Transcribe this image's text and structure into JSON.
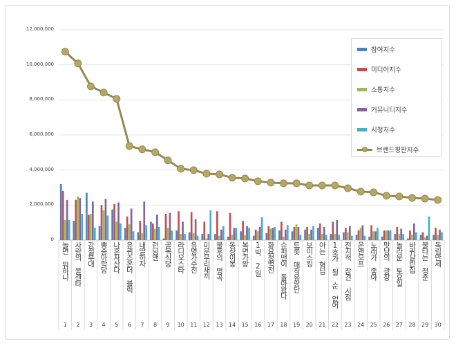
{
  "chart_data": {
    "type": "bar",
    "title": "",
    "xlabel": "",
    "ylabel": "",
    "ylim": [
      0,
      12000000
    ],
    "yticks": [
      "0",
      "2,000,000",
      "4,000,000",
      "6,000,000",
      "8,000,000",
      "10,000,000",
      "12,000,000"
    ],
    "grid": true,
    "legend_position": "top-right",
    "categories": [
      "1",
      "2",
      "3",
      "4",
      "5",
      "6",
      "7",
      "8",
      "9",
      "10",
      "11",
      "12",
      "13",
      "14",
      "15",
      "16",
      "17",
      "18",
      "19",
      "20",
      "21",
      "22",
      "23",
      "24",
      "25",
      "26",
      "27",
      "28",
      "29",
      "30"
    ],
    "category_names": [
      "놀면 뭐하니",
      "사랑의 콜센타",
      "강철부대",
      "뽕숭아학당",
      "나혼자산다",
      "유퀴즈온더 블럭",
      "내딸하자",
      "런닝맨",
      "골목식당",
      "라디오스타",
      "유명가수전",
      "미운우리새끼",
      "불후의 명곡",
      "동상이몽",
      "복면가왕",
      "1박 2일",
      "화요청백전",
      "슈퍼맨이 돌아왔다",
      "트롯 매직유랑단",
      "보이스킹",
      "아는 형님",
      "1호가 될 순 없어",
      "전지적 참견 시점",
      "온앤오프",
      "노래가 좋아",
      "맛남의 광장",
      "놀라운 토요일",
      "바퀴달린집",
      "불타는 청춘",
      "독립만세"
    ],
    "series": [
      {
        "name": "참여지수",
        "kind": "bar",
        "color": "#4f81bd",
        "values": [
          3200000,
          1100000,
          2700000,
          800000,
          1750000,
          700000,
          450000,
          1050000,
          100000,
          550000,
          450000,
          350000,
          350000,
          200000,
          500000,
          250000,
          400000,
          550000,
          500000,
          600000,
          700000,
          350000,
          450000,
          300000,
          200000,
          200000,
          350000,
          100000,
          300000,
          300000
        ]
      },
      {
        "name": "미디어지수",
        "kind": "bar",
        "color": "#c0504d",
        "values": [
          2800000,
          2300000,
          1450000,
          2000000,
          2050000,
          1350000,
          1100000,
          950000,
          1500000,
          1650000,
          1600000,
          1050000,
          1650000,
          1550000,
          1100000,
          600000,
          800000,
          1050000,
          750000,
          750000,
          950000,
          1050000,
          700000,
          550000,
          850000,
          550000,
          750000,
          550000,
          450000,
          700000
        ]
      },
      {
        "name": "소통지수",
        "kind": "bar",
        "color": "#9bbb59",
        "values": [
          1150000,
          2500000,
          1500000,
          1700000,
          1050000,
          900000,
          400000,
          650000,
          700000,
          350000,
          400000,
          100000,
          250000,
          300000,
          300000,
          500000,
          650000,
          200000,
          900000,
          350000,
          350000,
          350000,
          450000,
          700000,
          500000,
          550000,
          350000,
          300000,
          150000,
          300000
        ]
      },
      {
        "name": "커뮤니티지수",
        "kind": "bar",
        "color": "#8064a2",
        "values": [
          2300000,
          2400000,
          2200000,
          2350000,
          2150000,
          1800000,
          2200000,
          1450000,
          1550000,
          1050000,
          1200000,
          350000,
          600000,
          700000,
          800000,
          750000,
          700000,
          600000,
          750000,
          600000,
          750000,
          1150000,
          800000,
          850000,
          500000,
          550000,
          650000,
          950000,
          250000,
          600000
        ]
      },
      {
        "name": "시청지수",
        "kind": "bar",
        "color": "#4bacc6",
        "values": [
          1150000,
          1500000,
          700000,
          1400000,
          950000,
          500000,
          850000,
          750000,
          550000,
          350000,
          250000,
          1700000,
          800000,
          700000,
          700000,
          1300000,
          750000,
          850000,
          300000,
          800000,
          300000,
          300000,
          250000,
          250000,
          700000,
          550000,
          350000,
          450000,
          1350000,
          450000
        ]
      },
      {
        "name": "브랜드평판지수",
        "kind": "line",
        "color": "#938953",
        "marker_color": "#b5a865",
        "values": [
          10750000,
          10080000,
          8770000,
          8420000,
          8060000,
          5370000,
          5180000,
          5020000,
          4550000,
          4070000,
          3990000,
          3790000,
          3750000,
          3560000,
          3520000,
          3360000,
          3280000,
          3240000,
          3240000,
          3120000,
          3120000,
          3120000,
          2960000,
          2770000,
          2730000,
          2530000,
          2490000,
          2410000,
          2370000,
          2290000
        ]
      }
    ]
  }
}
